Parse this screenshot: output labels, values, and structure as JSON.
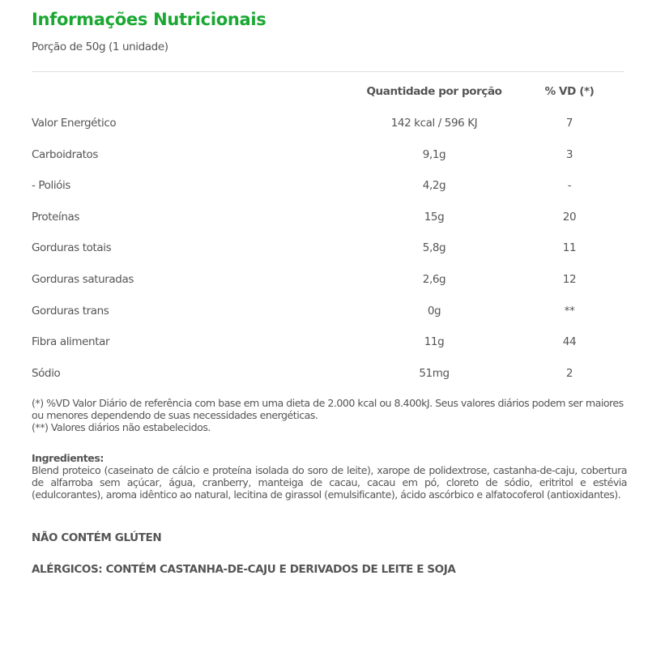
{
  "header": {
    "title": "Informações Nutricionais",
    "portion": "Porção de 50g (1 unidade)"
  },
  "table": {
    "columns": [
      "",
      "Quantidade por porção",
      "% VD (*)"
    ],
    "rows": [
      [
        "Valor Energético",
        "142 kcal  / 596 KJ",
        "7"
      ],
      [
        "Carboidratos",
        "9,1g",
        "3"
      ],
      [
        "- Polióis",
        "4,2g",
        "-"
      ],
      [
        "Proteínas",
        "15g",
        "20"
      ],
      [
        "Gorduras totais",
        "5,8g",
        "11"
      ],
      [
        "Gorduras saturadas",
        "2,6g",
        "12"
      ],
      [
        "Gorduras trans",
        "0g",
        "**"
      ],
      [
        "Fibra alimentar",
        "11g",
        "44"
      ],
      [
        "Sódio",
        "51mg",
        "2"
      ]
    ]
  },
  "notes": {
    "vd": "(*) %VD Valor Diário de referência com base em uma dieta de 2.000 kcal ou 8.400kJ. Seus valores diários podem ser maiores ou menores dependendo de suas necessidades energéticas.",
    "nd": "(**) Valores diários não estabelecidos."
  },
  "ingredients": {
    "heading": "Ingredientes:",
    "text": "Blend proteico (caseinato de cálcio e proteína isolada do soro de leite), xarope de polidextrose, castanha-de-caju, cobertura de alfarroba sem açúcar, água, cranberry, manteiga de cacau, cacau em pó, cloreto de sódio, eritritol e estévia (edulcorantes), aroma idêntico ao natural, lecitina de girassol (emulsificante), ácido ascórbico e alfatocoferol (antioxidantes)."
  },
  "gluten": "NÃO CONTÉM GLÚTEN",
  "allergens": "ALÉRGICOS: CONTÉM CASTANHA-DE-CAJU E DERIVADOS DE LEITE E SOJA",
  "colors": {
    "accent": "#1aa832",
    "text": "#555555"
  }
}
